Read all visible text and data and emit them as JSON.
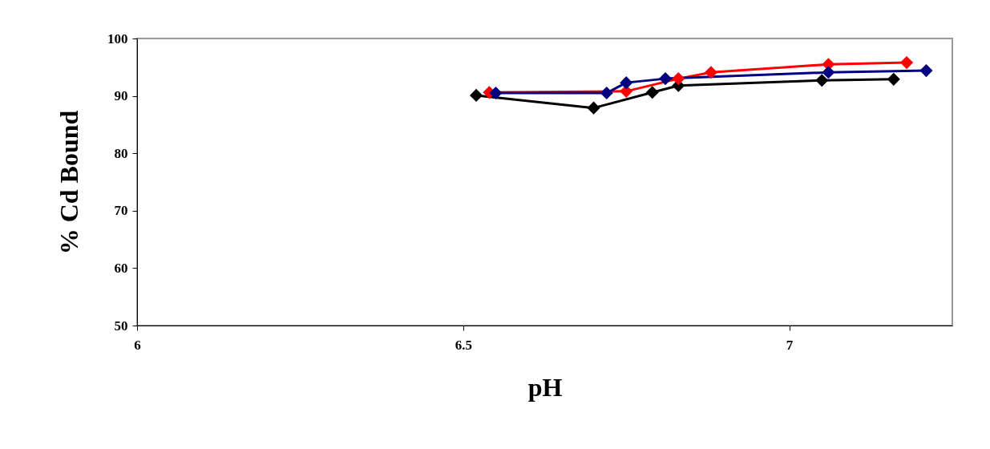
{
  "chart_data": {
    "type": "line",
    "xlabel": "pH",
    "ylabel": "% Cd Bound",
    "xlim": [
      6,
      7.25
    ],
    "xticks": [
      6,
      6.5,
      7
    ],
    "ylim": [
      50,
      100
    ],
    "yticks": [
      50,
      60,
      70,
      80,
      90,
      100
    ],
    "marker": "diamond",
    "line_style": "solid",
    "grid": false,
    "legend": false,
    "series": [
      {
        "color": "#000000",
        "x": [
          6.52,
          6.7,
          6.79,
          6.83,
          7.05,
          7.16
        ],
        "values": [
          90.1,
          87.9,
          90.6,
          91.8,
          92.7,
          92.9
        ]
      },
      {
        "color": "#ff0000",
        "x": [
          6.54,
          6.75,
          6.83,
          6.88,
          7.06,
          7.18
        ],
        "values": [
          90.6,
          90.8,
          93.0,
          94.1,
          95.5,
          95.8
        ]
      },
      {
        "color": "#000080",
        "x": [
          6.55,
          6.72,
          6.75,
          6.81,
          7.06,
          7.21
        ],
        "values": [
          90.5,
          90.5,
          92.3,
          93.0,
          94.1,
          94.4
        ]
      }
    ]
  }
}
